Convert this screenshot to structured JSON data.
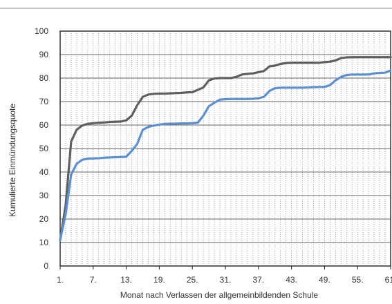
{
  "chart_data": {
    "type": "line",
    "title": "",
    "xlabel": "Monat nach Verlassen der allgemeinbildenden Schule",
    "ylabel": "Kumulierte Einmündungsquote",
    "xlim": [
      1,
      61
    ],
    "ylim": [
      0,
      100
    ],
    "y_ticks": [
      0,
      10,
      20,
      30,
      40,
      50,
      60,
      70,
      80,
      90,
      100
    ],
    "x_ticks": [
      1,
      7,
      13,
      19,
      25,
      31,
      37,
      43,
      49,
      55,
      61
    ],
    "x_tick_labels": [
      "1.",
      "7.",
      "13.",
      "19.",
      "25.",
      "31.",
      "37.",
      "43.",
      "49.",
      "55.",
      "61."
    ],
    "grid": "vertical-dotted-monthly, horizontal-solid",
    "legend": "none",
    "x": [
      1,
      2,
      3,
      4,
      5,
      6,
      7,
      8,
      9,
      10,
      11,
      12,
      13,
      14,
      15,
      16,
      17,
      18,
      19,
      20,
      21,
      22,
      23,
      24,
      25,
      26,
      27,
      28,
      29,
      30,
      31,
      32,
      33,
      34,
      35,
      36,
      37,
      38,
      39,
      40,
      41,
      42,
      43,
      44,
      45,
      46,
      47,
      48,
      49,
      50,
      51,
      52,
      53,
      54,
      55,
      56,
      57,
      58,
      59,
      60,
      61
    ],
    "series": [
      {
        "color": "#5f5f5f",
        "values": [
          11,
          26,
          53,
          58,
          59.8,
          60.5,
          60.8,
          61,
          61.1,
          61.3,
          61.4,
          61.5,
          62,
          64,
          68.5,
          72,
          73,
          73.3,
          73.4,
          73.4,
          73.5,
          73.6,
          73.7,
          73.9,
          74,
          75,
          76,
          79,
          79.8,
          80,
          80,
          80,
          80.5,
          81.5,
          81.8,
          82,
          82.5,
          83,
          85,
          85.3,
          86,
          86.4,
          86.5,
          86.5,
          86.5,
          86.5,
          86.5,
          86.5,
          86.8,
          87,
          87.5,
          88.5,
          88.8,
          88.9,
          88.9,
          88.9,
          88.9,
          88.9,
          88.9,
          88.9,
          88.9
        ]
      },
      {
        "color": "#5b8fd0",
        "values": [
          11,
          22,
          39,
          43.5,
          45.2,
          45.7,
          45.8,
          45.9,
          46.1,
          46.2,
          46.3,
          46.4,
          46.5,
          49,
          52,
          58,
          59.2,
          59.8,
          60.2,
          60.5,
          60.6,
          60.6,
          60.7,
          60.7,
          60.8,
          61,
          64,
          68,
          69.5,
          70.8,
          71,
          71.1,
          71.1,
          71.1,
          71.1,
          71.2,
          71.4,
          72,
          74.5,
          75.7,
          75.9,
          75.9,
          75.9,
          75.9,
          75.9,
          76,
          76.1,
          76.2,
          76.2,
          77,
          79,
          80.5,
          81.3,
          81.5,
          81.5,
          81.5,
          81.5,
          82,
          82.2,
          82.3,
          83.2
        ]
      }
    ]
  }
}
